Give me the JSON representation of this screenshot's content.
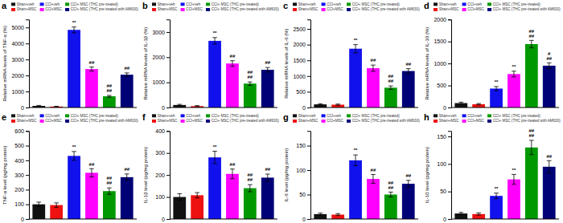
{
  "chart_data": [
    {
      "type": "bar",
      "title": "a",
      "ylabel": "Relative mRNA levels of TNF-α (%)",
      "categories": [
        "Sham+veh",
        "Sham+MSC",
        "CCI+veh",
        "CCI+MSC",
        "CCI+ MSC (THC pre-treated)",
        "CCI+ MSC (THC pre-treated with AM630)"
      ],
      "values": [
        100,
        60,
        4850,
        2400,
        700,
        2050
      ],
      "errors": [
        30,
        15,
        180,
        130,
        55,
        110
      ],
      "colors": [
        "#111111",
        "#ee1111",
        "#1111ee",
        "#ff00ff",
        "#009900",
        "#000077"
      ],
      "ylim": [
        0,
        5500
      ],
      "yticks": [
        0,
        1000,
        2000,
        3000,
        4000,
        5000
      ],
      "annotations": [
        {
          "category": "CCI+veh",
          "text": "**"
        },
        {
          "category": "CCI+MSC",
          "text": "##"
        },
        {
          "category": "CCI+ MSC (THC pre-treated)",
          "text": "##\n##"
        },
        {
          "category": "CCI+ MSC (THC pre-treated with AM630)",
          "text": "##"
        }
      ],
      "legend": "top",
      "tick_labels": "y",
      "grid": false
    },
    {
      "type": "bar",
      "title": "b",
      "ylabel": "Relative mRNA levels of IL-1β (%)",
      "categories": [
        "Sham+veh",
        "Sham+MSC",
        "CCI+veh",
        "CCI+MSC",
        "CCI+ MSC (THC pre-treated)",
        "CCI+ MSC (THC pre-treated with AM630)"
      ],
      "values": [
        100,
        55,
        2650,
        1750,
        950,
        1500
      ],
      "errors": [
        25,
        20,
        130,
        110,
        65,
        90
      ],
      "colors": [
        "#111111",
        "#ee1111",
        "#1111ee",
        "#ff00ff",
        "#009900",
        "#000077"
      ],
      "ylim": [
        0,
        3500
      ],
      "yticks": [
        0,
        1000,
        2000,
        3000
      ],
      "annotations": [
        {
          "category": "CCI+veh",
          "text": "**"
        },
        {
          "category": "CCI+MSC",
          "text": "##"
        },
        {
          "category": "CCI+ MSC (THC pre-treated)",
          "text": "##\n##"
        },
        {
          "category": "CCI+ MSC (THC pre-treated with AM630)",
          "text": "##"
        }
      ],
      "legend": "top",
      "tick_labels": "y",
      "grid": false
    },
    {
      "type": "bar",
      "title": "c",
      "ylabel": "Relative mRNA levels of IL-6 (%)",
      "categories": [
        "Sham+veh",
        "Sham+MSC",
        "CCI+veh",
        "CCI+MSC",
        "CCI+ MSC (THC pre-treated)",
        "CCI+ MSC (THC pre-treated with AM630)"
      ],
      "values": [
        100,
        90,
        1870,
        1250,
        630,
        1160
      ],
      "errors": [
        20,
        18,
        130,
        100,
        55,
        75
      ],
      "colors": [
        "#111111",
        "#ee1111",
        "#1111ee",
        "#ff00ff",
        "#009900",
        "#000077"
      ],
      "ylim": [
        0,
        2800
      ],
      "yticks": [
        0,
        500,
        1000,
        1500,
        2000,
        2500
      ],
      "annotations": [
        {
          "category": "CCI+veh",
          "text": "**"
        },
        {
          "category": "CCI+MSC",
          "text": "##"
        },
        {
          "category": "CCI+ MSC (THC pre-treated)",
          "text": "##\n##"
        },
        {
          "category": "CCI+ MSC (THC pre-treated with AM630)",
          "text": "##"
        }
      ],
      "legend": "top",
      "tick_labels": "y",
      "grid": false
    },
    {
      "type": "bar",
      "title": "d",
      "ylabel": "Relative mRNA levels of IL-10 (%)",
      "categories": [
        "Sham+veh",
        "Sham+MSC",
        "CCI+veh",
        "CCI+MSC",
        "CCI+ MSC (THC pre-treated)",
        "CCI+ MSC (THC pre-treated with AM630)"
      ],
      "values": [
        100,
        75,
        430,
        760,
        1440,
        950
      ],
      "errors": [
        20,
        15,
        45,
        65,
        85,
        65
      ],
      "colors": [
        "#111111",
        "#ee1111",
        "#1111ee",
        "#ff00ff",
        "#009900",
        "#000077"
      ],
      "ylim": [
        0,
        2000
      ],
      "yticks": [
        0,
        500,
        1000,
        1500,
        2000
      ],
      "annotations": [
        {
          "category": "CCI+veh",
          "text": "**"
        },
        {
          "category": "CCI+MSC",
          "text": "**"
        },
        {
          "category": "CCI+ MSC (THC pre-treated)",
          "text": "##\n##"
        },
        {
          "category": "CCI+ MSC (THC pre-treated with AM630)",
          "text": "#\n##"
        }
      ],
      "legend": "top",
      "tick_labels": "y",
      "grid": false
    },
    {
      "type": "bar",
      "title": "e",
      "ylabel": "TNF-α level (pg/mg protein)",
      "categories": [
        "Sham+veh",
        "Sham+MSC",
        "CCI+veh",
        "CCI+MSC",
        "CCI+ MSC (THC pre-treated)",
        "CCI+ MSC (THC pre-treated with AM630)"
      ],
      "values": [
        100,
        95,
        430,
        315,
        190,
        285
      ],
      "errors": [
        15,
        15,
        30,
        28,
        22,
        22
      ],
      "colors": [
        "#111111",
        "#ee1111",
        "#1111ee",
        "#ff00ff",
        "#009900",
        "#000077"
      ],
      "ylim": [
        0,
        600
      ],
      "yticks": [
        0,
        100,
        200,
        300,
        400,
        500,
        600
      ],
      "annotations": [
        {
          "category": "CCI+veh",
          "text": "**"
        },
        {
          "category": "CCI+MSC",
          "text": "##"
        },
        {
          "category": "CCI+ MSC (THC pre-treated)",
          "text": "##\n##"
        },
        {
          "category": "CCI+ MSC (THC pre-treated with AM630)",
          "text": "##"
        }
      ],
      "legend": "top",
      "tick_labels": "y",
      "grid": false
    },
    {
      "type": "bar",
      "title": "f",
      "ylabel": "IL-1β level (pg/mg protein)",
      "categories": [
        "Sham+veh",
        "Sham+MSC",
        "CCI+veh",
        "CCI+MSC",
        "CCI+ MSC (THC pre-treated)",
        "CCI+ MSC (THC pre-treated with AM630)"
      ],
      "values": [
        100,
        108,
        280,
        205,
        140,
        188
      ],
      "errors": [
        15,
        12,
        28,
        22,
        16,
        16
      ],
      "colors": [
        "#111111",
        "#ee1111",
        "#1111ee",
        "#ff00ff",
        "#009900",
        "#000077"
      ],
      "ylim": [
        0,
        400
      ],
      "yticks": [
        0,
        100,
        200,
        300,
        400
      ],
      "annotations": [
        {
          "category": "CCI+veh",
          "text": "**"
        },
        {
          "category": "CCI+MSC",
          "text": "##"
        },
        {
          "category": "CCI+ MSC (THC pre-treated)",
          "text": "##\n##"
        },
        {
          "category": "CCI+ MSC (THC pre-treated with AM630)",
          "text": "##"
        }
      ],
      "legend": "top",
      "tick_labels": "y",
      "grid": false
    },
    {
      "type": "bar",
      "title": "g",
      "ylabel": "IL-6 level (pg/mg protein)",
      "categories": [
        "Sham+veh",
        "Sham+MSC",
        "CCI+veh",
        "CCI+MSC",
        "CCI+ MSC (THC pre-treated)",
        "CCI+ MSC (THC pre-treated with AM630)"
      ],
      "values": [
        10,
        9,
        120,
        82,
        50,
        72
      ],
      "errors": [
        2,
        2,
        11,
        9,
        5,
        7
      ],
      "colors": [
        "#111111",
        "#ee1111",
        "#1111ee",
        "#ff00ff",
        "#009900",
        "#000077"
      ],
      "ylim": [
        0,
        180
      ],
      "yticks": [
        0,
        50,
        100,
        150
      ],
      "annotations": [
        {
          "category": "CCI+veh",
          "text": "**"
        },
        {
          "category": "CCI+MSC",
          "text": "##"
        },
        {
          "category": "CCI+ MSC (THC pre-treated)",
          "text": "##\n##"
        },
        {
          "category": "CCI+ MSC (THC pre-treated with AM630)",
          "text": "##"
        }
      ],
      "legend": "top",
      "tick_labels": "y",
      "grid": false
    },
    {
      "type": "bar",
      "title": "h",
      "ylabel": "IL-10 level (pg/mg protein)",
      "categories": [
        "Sham+veh",
        "Sham+MSC",
        "CCI+veh",
        "CCI+MSC",
        "CCI+ MSC (THC pre-treated)",
        "CCI+ MSC (THC pre-treated with AM630)"
      ],
      "values": [
        10,
        9,
        42,
        72,
        130,
        95
      ],
      "errors": [
        2,
        2,
        5,
        9,
        13,
        11
      ],
      "colors": [
        "#111111",
        "#ee1111",
        "#1111ee",
        "#ff00ff",
        "#009900",
        "#000077"
      ],
      "ylim": [
        0,
        160
      ],
      "yticks": [
        0,
        50,
        100,
        150
      ],
      "annotations": [
        {
          "category": "CCI+veh",
          "text": "**"
        },
        {
          "category": "CCI+MSC",
          "text": "**"
        },
        {
          "category": "CCI+ MSC (THC pre-treated)",
          "text": "##\n##"
        },
        {
          "category": "CCI+ MSC (THC pre-treated with AM630)",
          "text": "##"
        }
      ],
      "legend": "top",
      "tick_labels": "y",
      "grid": false
    }
  ]
}
